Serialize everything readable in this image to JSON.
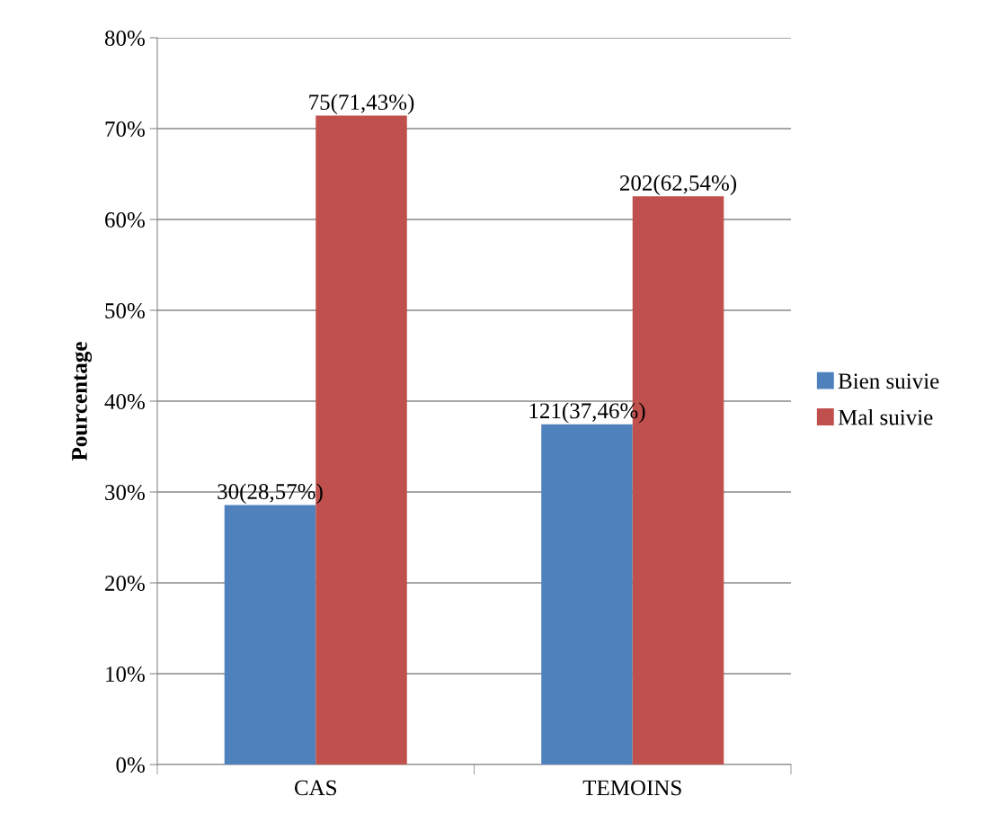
{
  "chart_data": {
    "type": "bar",
    "ylabel": "Pourcentage",
    "categories": [
      "CAS",
      "TEMOINS"
    ],
    "series": [
      {
        "name": "Bien suivie",
        "color": "#4f81bd",
        "values": [
          28.57,
          37.46
        ],
        "value_labels": [
          "30(28,57%)",
          "121(37,46%)"
        ]
      },
      {
        "name": "Mal suivie",
        "color": "#c0504d",
        "values": [
          71.43,
          62.54
        ],
        "value_labels": [
          "75(71,43%)",
          "202(62,54%)"
        ]
      }
    ],
    "ylim": [
      0,
      80
    ],
    "yticks": [
      {
        "value": 0,
        "label": "0%"
      },
      {
        "value": 10,
        "label": "10%"
      },
      {
        "value": 20,
        "label": "20%"
      },
      {
        "value": 30,
        "label": "30%"
      },
      {
        "value": 40,
        "label": "40%"
      },
      {
        "value": 50,
        "label": "50%"
      },
      {
        "value": 60,
        "label": "60%"
      },
      {
        "value": 70,
        "label": "70%"
      },
      {
        "value": 80,
        "label": "80%"
      }
    ],
    "grid": "y",
    "legend": "right"
  }
}
